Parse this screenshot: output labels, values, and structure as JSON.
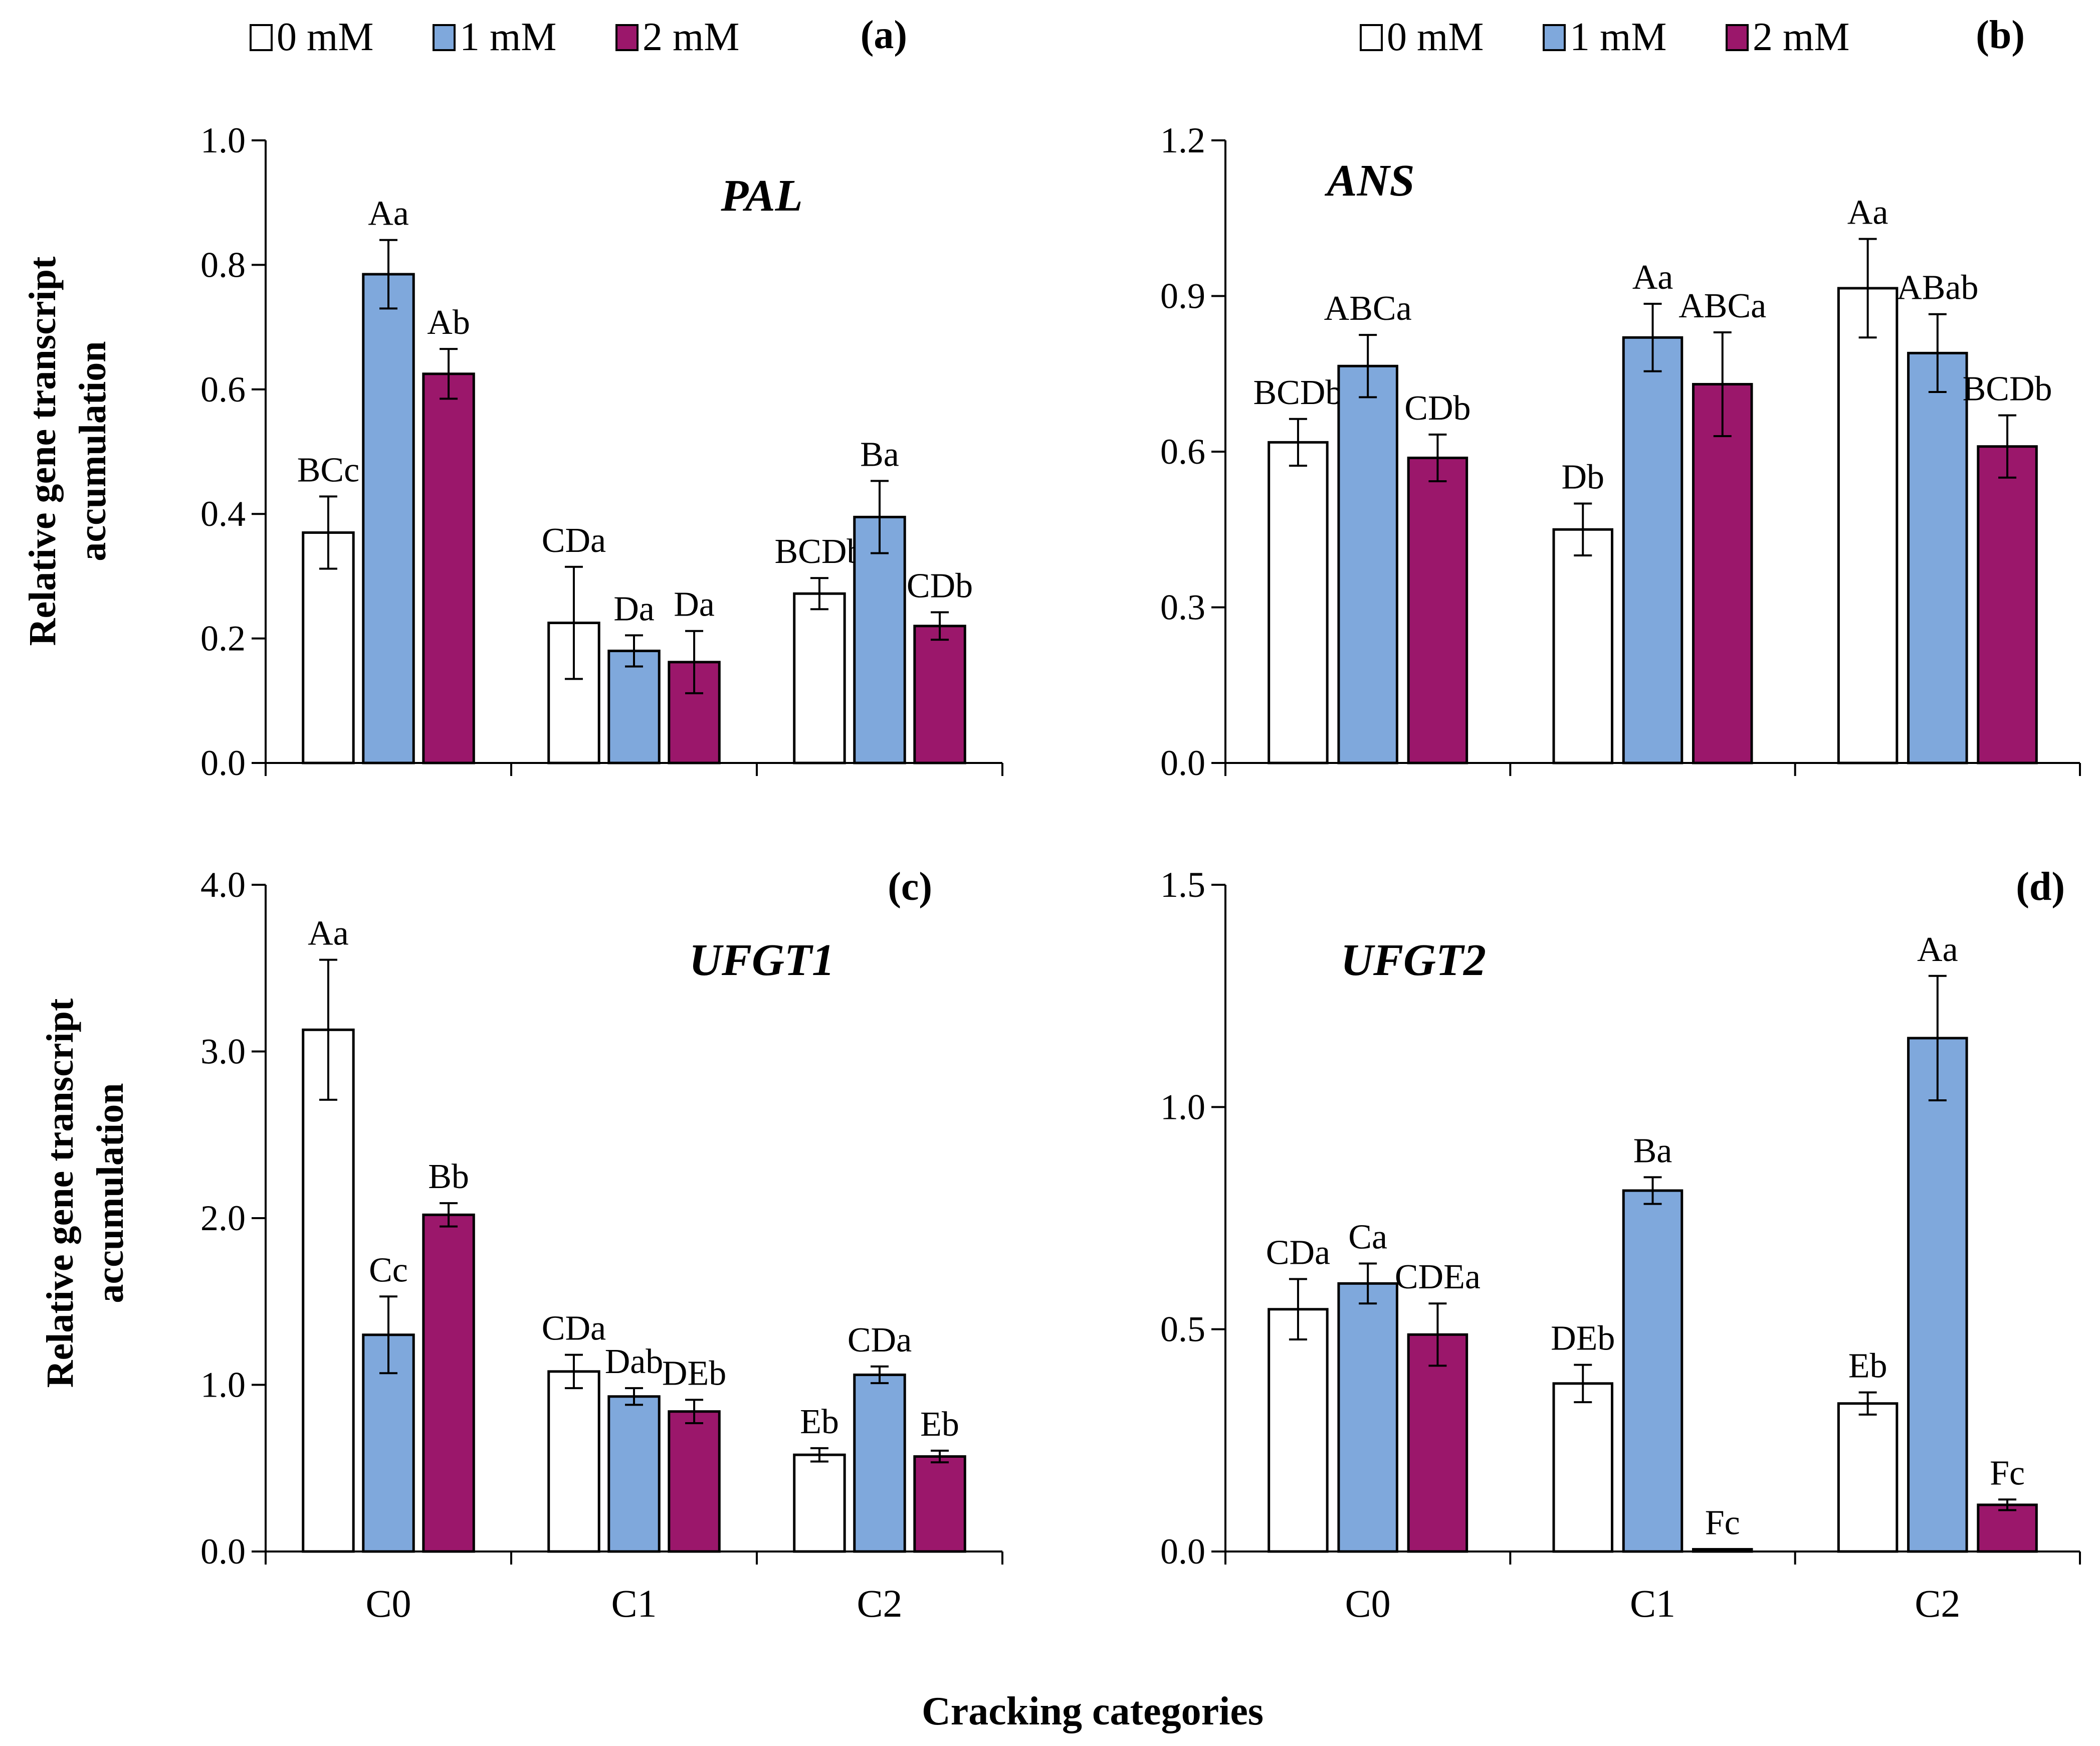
{
  "legend": [
    {
      "name": "0 mM",
      "color": "#ffffff"
    },
    {
      "name": "1 mM",
      "color": "#7fa8dc"
    },
    {
      "name": "2 mM",
      "color": "#9b176b"
    }
  ],
  "x_axis_label": "Cracking categories",
  "y_axis_label_line1": "Relative gene transcript",
  "y_axis_label_line2": "accumulation",
  "chart_data": [
    {
      "type": "bar",
      "panel": "(a)",
      "title": "PAL",
      "categories": [
        "C0",
        "C1",
        "C2"
      ],
      "ylim": [
        0,
        1.0
      ],
      "yticks": [
        0.0,
        0.2,
        0.4,
        0.6,
        0.8,
        1.0
      ],
      "ytick_labels": [
        "0.0",
        "0.2",
        "0.4",
        "0.6",
        "0.8",
        "1.0"
      ],
      "series": [
        {
          "name": "0 mM",
          "values": [
            0.37,
            0.225,
            0.272
          ],
          "errors": [
            0.058,
            0.09,
            0.025
          ],
          "labels": [
            "BCc",
            "CDa",
            "BCDb"
          ]
        },
        {
          "name": "1 mM",
          "values": [
            0.785,
            0.18,
            0.395
          ],
          "errors": [
            0.055,
            0.025,
            0.058
          ],
          "labels": [
            "Aa",
            "Da",
            "Ba"
          ]
        },
        {
          "name": "2 mM",
          "values": [
            0.625,
            0.162,
            0.22
          ],
          "errors": [
            0.04,
            0.05,
            0.022
          ],
          "labels": [
            "Ab",
            "Da",
            "CDb"
          ]
        }
      ]
    },
    {
      "type": "bar",
      "panel": "(b)",
      "title": "ANS",
      "categories": [
        "C0",
        "C1",
        "C2"
      ],
      "ylim": [
        0,
        1.2
      ],
      "yticks": [
        0.0,
        0.3,
        0.6,
        0.9,
        1.2
      ],
      "ytick_labels": [
        "0.0",
        "0.3",
        "0.6",
        "0.9",
        "1.2"
      ],
      "series": [
        {
          "name": "0 mM",
          "values": [
            0.618,
            0.45,
            0.915
          ],
          "errors": [
            0.045,
            0.05,
            0.095
          ],
          "labels": [
            "BCDb",
            "Db",
            "Aa"
          ]
        },
        {
          "name": "1 mM",
          "values": [
            0.765,
            0.82,
            0.79
          ],
          "errors": [
            0.06,
            0.065,
            0.075
          ],
          "labels": [
            "ABCa",
            "Aa",
            "ABab"
          ]
        },
        {
          "name": "2 mM",
          "values": [
            0.588,
            0.73,
            0.61
          ],
          "errors": [
            0.045,
            0.1,
            0.06
          ],
          "labels": [
            "CDb",
            "ABCa",
            "BCDb"
          ]
        }
      ]
    },
    {
      "type": "bar",
      "panel": "(c)",
      "title": "UFGT1",
      "categories": [
        "C0",
        "C1",
        "C2"
      ],
      "ylim": [
        0,
        4.0
      ],
      "yticks": [
        0.0,
        1.0,
        2.0,
        3.0,
        4.0
      ],
      "ytick_labels": [
        "0.0",
        "1.0",
        "2.0",
        "3.0",
        "4.0"
      ],
      "series": [
        {
          "name": "0 mM",
          "values": [
            3.13,
            1.08,
            0.58
          ],
          "errors": [
            0.42,
            0.1,
            0.04
          ],
          "labels": [
            "Aa",
            "CDa",
            "Eb"
          ]
        },
        {
          "name": "1 mM",
          "values": [
            1.3,
            0.93,
            1.06
          ],
          "errors": [
            0.23,
            0.05,
            0.05
          ],
          "labels": [
            "Cc",
            "Dab",
            "CDa"
          ]
        },
        {
          "name": "2 mM",
          "values": [
            2.02,
            0.84,
            0.57
          ],
          "errors": [
            0.07,
            0.07,
            0.035
          ],
          "labels": [
            "Bb",
            "DEb",
            "Eb"
          ]
        }
      ]
    },
    {
      "type": "bar",
      "panel": "(d)",
      "title": "UFGT2",
      "categories": [
        "C0",
        "C1",
        "C2"
      ],
      "ylim": [
        0,
        1.5
      ],
      "yticks": [
        0.0,
        0.5,
        1.0,
        1.5
      ],
      "ytick_labels": [
        "0.0",
        "0.5",
        "1.0",
        "1.5"
      ],
      "series": [
        {
          "name": "0 mM",
          "values": [
            0.545,
            0.378,
            0.333
          ],
          "errors": [
            0.068,
            0.042,
            0.025
          ],
          "labels": [
            "CDa",
            "DEb",
            "Eb"
          ]
        },
        {
          "name": "1 mM",
          "values": [
            0.603,
            0.812,
            1.155
          ],
          "errors": [
            0.045,
            0.03,
            0.14
          ],
          "labels": [
            "Ca",
            "Ba",
            "Aa"
          ]
        },
        {
          "name": "2 mM",
          "values": [
            0.488,
            0.005,
            0.105
          ],
          "errors": [
            0.07,
            0.0,
            0.012
          ],
          "labels": [
            "CDEa",
            "Fc",
            "Fc"
          ]
        }
      ]
    }
  ]
}
